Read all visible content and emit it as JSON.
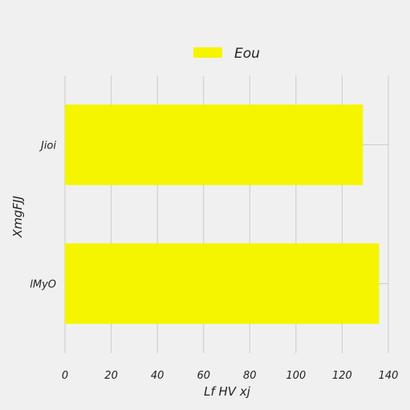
{
  "chart_data": {
    "type": "bar",
    "orientation": "horizontal",
    "categories": [
      "Jioi",
      "lMyO"
    ],
    "series": [
      {
        "name": "Eou",
        "values": [
          129,
          136
        ],
        "color": "#f5f500"
      }
    ],
    "xlabel": "Lf HV xj",
    "ylabel": "XmgFJJ",
    "xlim": [
      0,
      140
    ],
    "xticks": [
      "0",
      "20",
      "40",
      "60",
      "80",
      "100",
      "120",
      "140"
    ],
    "grid": true,
    "legend_position": "top-center",
    "background_color": "#f0f0f0",
    "grid_color": "#cbcbcb"
  }
}
